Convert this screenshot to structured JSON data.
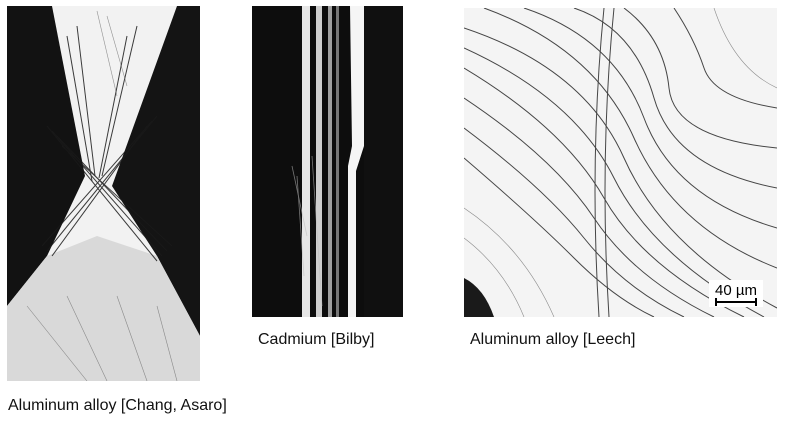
{
  "figures": [
    {
      "caption": "Aluminum alloy [Chang, Asaro]",
      "image": "micrograph-x-shear-bands"
    },
    {
      "caption": "Cadmium [Bilby]",
      "image": "micrograph-vertical-twin-band"
    },
    {
      "caption": "Aluminum alloy [Leech]",
      "image": "micrograph-curved-slip-lines",
      "scale_label": "40 µm"
    }
  ],
  "colors": {
    "ink": "#111111",
    "paper": "#ffffff"
  }
}
